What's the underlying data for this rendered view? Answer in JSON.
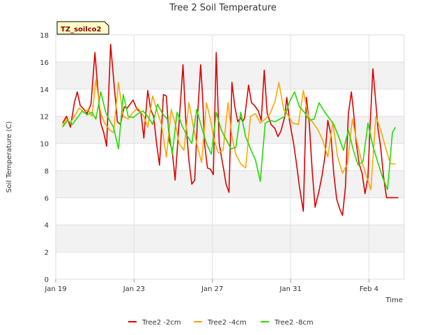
{
  "chart_data": {
    "type": "line",
    "title": "Tree 2 Soil Temperature",
    "xlabel": "Time",
    "ylabel": "Soil Temperature (C)",
    "station_label": "TZ_soilco2",
    "x_unit": "days since Jan 19",
    "xlim": [
      0,
      17.8
    ],
    "ylim": [
      0,
      18
    ],
    "yticks": [
      0,
      2,
      4,
      6,
      8,
      10,
      12,
      14,
      16,
      18
    ],
    "xticks": [
      {
        "value": 0,
        "label": "Jan 19"
      },
      {
        "value": 4,
        "label": "Jan 23"
      },
      {
        "value": 8,
        "label": "Jan 27"
      },
      {
        "value": 12,
        "label": "Jan 31"
      },
      {
        "value": 16,
        "label": "Feb 4"
      }
    ],
    "grid": true,
    "legend_position": "bottom",
    "series": [
      {
        "name": "Tree2 -2cm",
        "color": "#dd0000",
        "x": [
          0.35,
          0.55,
          0.75,
          0.95,
          1.1,
          1.25,
          1.45,
          1.6,
          1.8,
          2.0,
          2.15,
          2.3,
          2.45,
          2.6,
          2.8,
          3.0,
          3.15,
          3.3,
          3.5,
          3.65,
          3.8,
          3.95,
          4.15,
          4.35,
          4.5,
          4.7,
          4.85,
          5.0,
          5.15,
          5.3,
          5.5,
          5.65,
          5.8,
          5.95,
          6.1,
          6.25,
          6.5,
          6.65,
          6.8,
          6.95,
          7.1,
          7.25,
          7.4,
          7.5,
          7.6,
          7.75,
          7.9,
          8.05,
          8.2,
          8.35,
          8.5,
          8.6,
          8.7,
          8.85,
          9.0,
          9.15,
          9.3,
          9.45,
          9.55,
          9.65,
          9.85,
          10.0,
          10.15,
          10.35,
          10.5,
          10.65,
          10.8,
          11.0,
          11.2,
          11.35,
          11.5,
          11.7,
          11.8,
          11.95,
          12.15,
          12.3,
          12.45,
          12.65,
          12.8,
          12.95,
          13.1,
          13.25,
          13.45,
          13.6,
          13.75,
          13.9,
          14.05,
          14.2,
          14.35,
          14.5,
          14.65,
          14.8,
          14.95,
          15.1,
          15.2,
          15.35,
          15.5,
          15.65,
          15.8,
          15.95,
          16.05,
          16.2,
          16.35,
          16.45,
          16.6,
          16.75,
          16.9,
          17.05,
          17.2,
          17.35,
          17.5
        ],
        "values": [
          11.5,
          12.0,
          11.2,
          13.0,
          13.8,
          12.8,
          12.5,
          12.2,
          12.9,
          16.7,
          14.0,
          11.5,
          10.8,
          9.8,
          17.3,
          14.0,
          11.6,
          11.4,
          12.7,
          12.6,
          12.9,
          13.2,
          12.5,
          12.3,
          10.4,
          13.9,
          12.5,
          12.0,
          10.0,
          8.4,
          13.6,
          13.5,
          10.2,
          9.5,
          7.3,
          10.5,
          15.8,
          11.5,
          8.8,
          7.0,
          7.3,
          12.2,
          15.8,
          13.5,
          10.0,
          8.2,
          8.1,
          7.7,
          16.7,
          10.0,
          8.7,
          7.9,
          7.0,
          6.4,
          14.5,
          12.7,
          11.6,
          11.9,
          11.6,
          11.9,
          14.3,
          13.0,
          12.8,
          12.4,
          11.7,
          15.4,
          12.2,
          11.4,
          11.1,
          10.5,
          10.9,
          12.0,
          13.4,
          11.6,
          10.0,
          8.5,
          6.8,
          5.0,
          13.4,
          11.5,
          8.0,
          5.3,
          6.5,
          7.6,
          9.0,
          11.7,
          10.7,
          7.8,
          5.9,
          5.2,
          4.7,
          6.8,
          12.2,
          13.8,
          12.5,
          10.0,
          8.5,
          7.8,
          6.3,
          7.5,
          11.0,
          15.5,
          13.0,
          11.2,
          9.7,
          7.5,
          6.0,
          6.0,
          6.0,
          6.0,
          6.0
        ]
      },
      {
        "name": "Tree2 -4cm",
        "color": "#ffa500",
        "x": [
          0.35,
          0.55,
          0.75,
          0.95,
          1.2,
          1.45,
          1.65,
          1.85,
          2.05,
          2.3,
          2.5,
          2.75,
          2.95,
          3.2,
          3.45,
          3.7,
          3.95,
          4.2,
          4.5,
          4.7,
          4.95,
          5.2,
          5.4,
          5.65,
          5.9,
          6.1,
          6.3,
          6.55,
          6.8,
          7.0,
          7.2,
          7.45,
          7.7,
          7.9,
          8.1,
          8.3,
          8.55,
          8.8,
          9.0,
          9.2,
          9.45,
          9.7,
          9.95,
          10.2,
          10.45,
          10.7,
          10.95,
          11.2,
          11.4,
          11.65,
          11.9,
          12.1,
          12.4,
          12.65,
          12.9,
          13.15,
          13.4,
          13.65,
          13.9,
          14.15,
          14.4,
          14.65,
          14.9,
          15.15,
          15.4,
          15.65,
          15.9,
          16.1,
          16.35,
          16.6,
          16.85,
          17.1,
          17.35
        ],
        "values": [
          11.3,
          11.8,
          11.5,
          12.0,
          12.6,
          12.3,
          12.5,
          12.0,
          14.7,
          12.2,
          11.5,
          11.0,
          10.8,
          14.5,
          12.0,
          11.8,
          12.3,
          12.6,
          12.0,
          11.2,
          13.5,
          12.3,
          11.4,
          9.0,
          12.5,
          11.5,
          10.0,
          9.5,
          13.0,
          11.5,
          10.0,
          8.6,
          13.0,
          11.8,
          10.2,
          9.3,
          9.5,
          13.0,
          10.5,
          9.2,
          8.5,
          8.2,
          12.0,
          12.2,
          11.5,
          11.8,
          12.2,
          13.1,
          14.5,
          12.5,
          12.0,
          11.5,
          11.4,
          13.9,
          12.0,
          11.5,
          11.0,
          10.2,
          9.0,
          11.6,
          9.0,
          7.8,
          8.5,
          11.8,
          10.0,
          8.6,
          7.5,
          6.6,
          12.0,
          11.0,
          9.7,
          8.5,
          8.5
        ]
      },
      {
        "name": "Tree2 -8cm",
        "color": "#22dd00",
        "x": [
          0.35,
          0.6,
          0.85,
          1.1,
          1.35,
          1.6,
          1.85,
          2.05,
          2.3,
          2.55,
          2.75,
          2.95,
          3.2,
          3.45,
          3.7,
          3.95,
          4.2,
          4.45,
          4.7,
          4.95,
          5.2,
          5.45,
          5.7,
          5.95,
          6.2,
          6.45,
          6.7,
          6.95,
          7.2,
          7.45,
          7.7,
          7.95,
          8.2,
          8.45,
          8.7,
          8.95,
          9.2,
          9.45,
          9.7,
          9.95,
          10.2,
          10.45,
          10.7,
          10.95,
          11.2,
          11.45,
          11.7,
          11.95,
          12.2,
          12.45,
          12.7,
          12.95,
          13.2,
          13.45,
          13.7,
          13.95,
          14.2,
          14.45,
          14.7,
          14.95,
          15.2,
          15.45,
          15.7,
          15.95,
          16.2,
          16.45,
          16.7,
          16.95,
          17.2,
          17.35
        ],
        "values": [
          11.2,
          11.7,
          11.4,
          11.9,
          12.4,
          12.1,
          12.3,
          11.8,
          13.8,
          12.3,
          11.7,
          11.2,
          9.6,
          13.6,
          12.0,
          11.9,
          12.2,
          12.4,
          12.0,
          11.4,
          12.9,
          12.2,
          11.8,
          9.2,
          12.3,
          11.3,
          10.6,
          10.0,
          12.5,
          11.2,
          10.0,
          9.2,
          12.3,
          11.0,
          10.3,
          9.6,
          9.7,
          12.3,
          10.5,
          9.6,
          8.8,
          7.2,
          11.5,
          11.7,
          11.6,
          11.8,
          12.0,
          13.1,
          13.8,
          12.7,
          12.3,
          11.7,
          11.8,
          13.0,
          12.4,
          11.9,
          11.4,
          10.5,
          9.5,
          11.0,
          9.5,
          8.4,
          8.7,
          11.5,
          9.8,
          8.6,
          7.5,
          6.6,
          10.8,
          11.2
        ]
      }
    ]
  }
}
